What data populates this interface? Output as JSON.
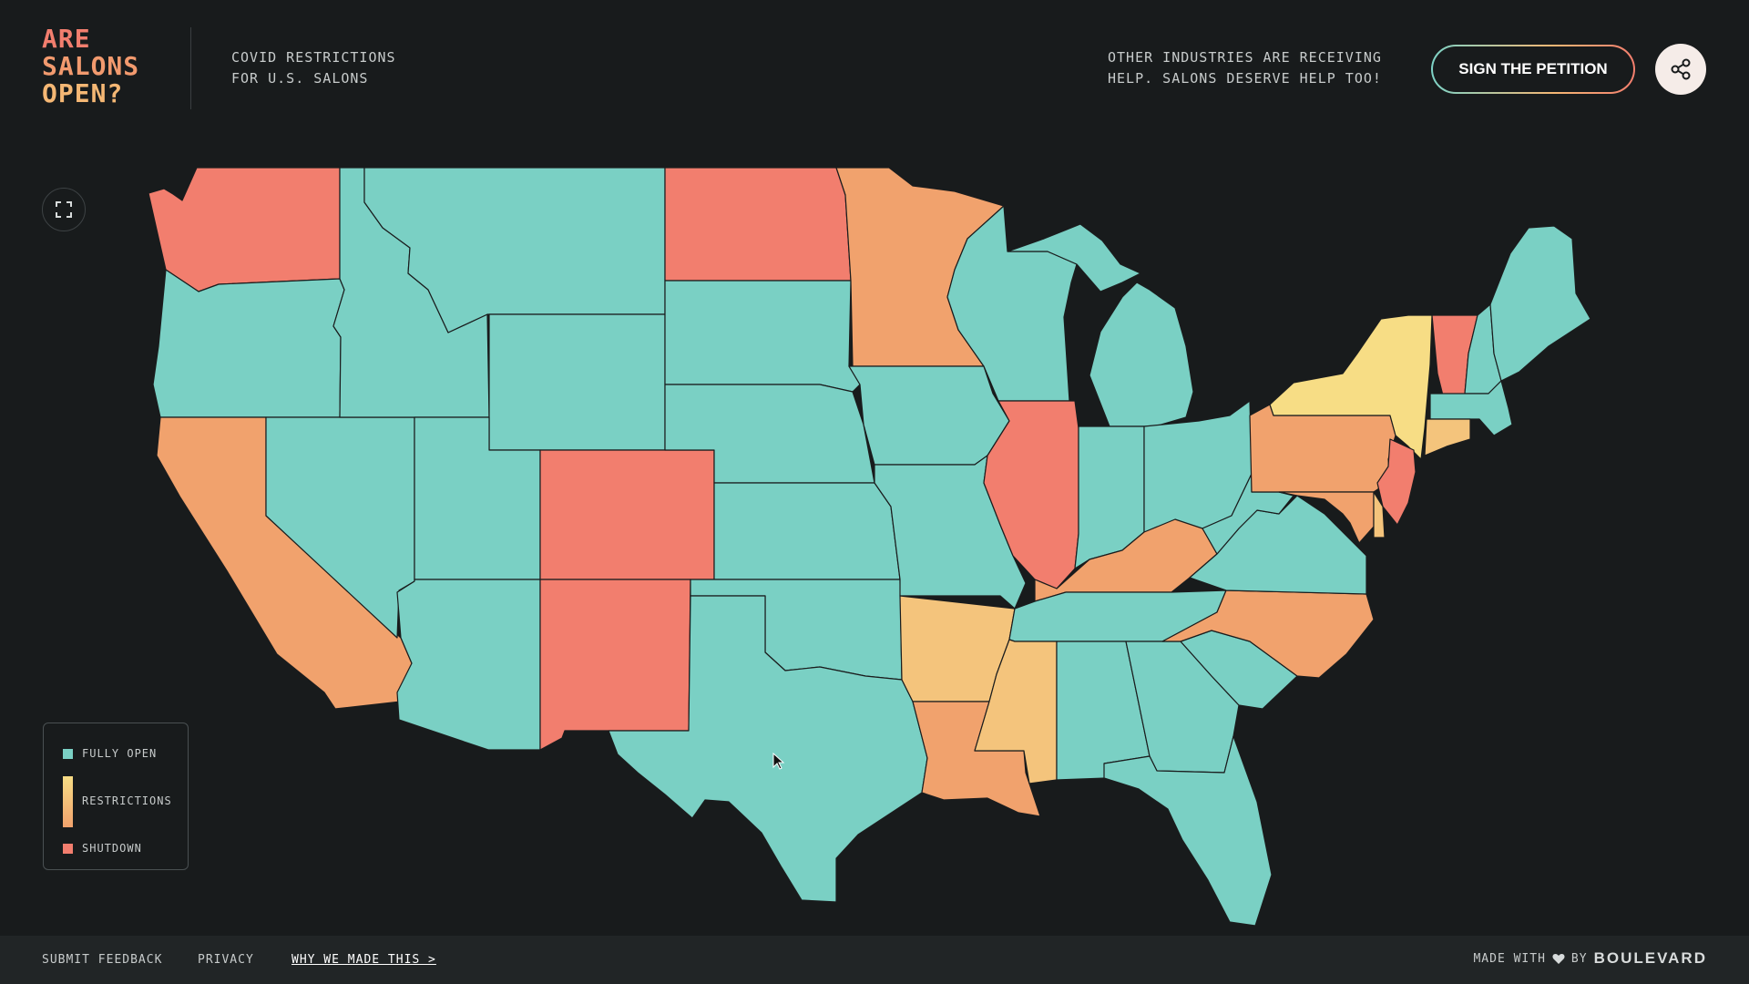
{
  "header": {
    "logo_lines": [
      "ARE",
      "SALONS",
      "OPEN?"
    ],
    "subtitle_lines": [
      "COVID RESTRICTIONS",
      "FOR U.S. SALONS"
    ],
    "tagline_lines": [
      "OTHER INDUSTRIES ARE RECEIVING",
      "HELP. SALONS DESERVE HELP TOO!"
    ],
    "petition_label": "SIGN THE PETITION",
    "share_icon": "share-icon"
  },
  "map": {
    "expand_icon": "fullscreen-icon",
    "colors": {
      "open": "#7ad0c4",
      "restrictions_light": "#f7dd85",
      "restrictions_mid": "#f4c47c",
      "restrictions_dark": "#f1a26d",
      "shutdown": "#f27e6e"
    },
    "states": {
      "WA": "shutdown",
      "OR": "open",
      "CA": "restrictions_dark",
      "NV": "open",
      "ID": "open",
      "MT": "open",
      "WY": "open",
      "UT": "open",
      "AZ": "open",
      "CO": "shutdown",
      "NM": "shutdown",
      "ND": "shutdown",
      "SD": "open",
      "NE": "open",
      "KS": "open",
      "OK": "open",
      "TX": "open",
      "MN": "restrictions_dark",
      "IA": "open",
      "MO": "open",
      "AR": "restrictions_mid",
      "LA": "restrictions_dark",
      "WI": "open",
      "IL": "shutdown",
      "MI": "open",
      "IN": "open",
      "OH": "open",
      "KY": "restrictions_dark",
      "TN": "open",
      "MS": "restrictions_mid",
      "AL": "open",
      "GA": "open",
      "FL": "open",
      "SC": "open",
      "NC": "restrictions_dark",
      "VA": "open",
      "WV": "open",
      "PA": "restrictions_dark",
      "NY": "restrictions_light",
      "VT": "shutdown",
      "NH": "open",
      "ME": "open",
      "MA": "open",
      "CT": "restrictions_mid",
      "NJ": "shutdown",
      "MD": "restrictions_dark",
      "DE": "restrictions_mid"
    }
  },
  "legend": {
    "items": [
      {
        "label": "FULLY OPEN",
        "color": "#7ad0c4"
      },
      {
        "label": "RESTRICTIONS",
        "color": "#f4b774"
      },
      {
        "label": "SHUTDOWN",
        "color": "#f27e6e"
      }
    ]
  },
  "footer": {
    "feedback": "SUBMIT FEEDBACK",
    "privacy": "PRIVACY",
    "why": "WHY WE MADE THIS >",
    "made_with": "MADE WITH",
    "by": "BY",
    "brand": "BOULEVARD"
  }
}
